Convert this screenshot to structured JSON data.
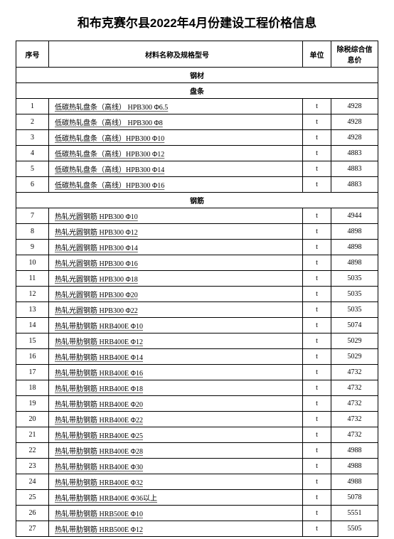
{
  "title": "和布克赛尔县2022年4月份建设工程价格信息",
  "columns": {
    "seq": "序号",
    "name": "材料名称及规格型号",
    "unit": "单位",
    "price": "除税综合信息价"
  },
  "sections": [
    {
      "header": "钢材"
    },
    {
      "header": "盘条",
      "rows": [
        {
          "seq": "1",
          "name": "低碳热轧盘条（高线） HPB300 Φ6.5",
          "unit": "t",
          "price": "4928"
        },
        {
          "seq": "2",
          "name": "低碳热轧盘条（高线） HPB300 Φ8",
          "unit": "t",
          "price": "4928"
        },
        {
          "seq": "3",
          "name": "低碳热轧盘条（高线）HPB300 Φ10",
          "unit": "t",
          "price": "4928"
        },
        {
          "seq": "4",
          "name": "低碳热轧盘条（高线）HPB300 Φ12",
          "unit": "t",
          "price": "4883"
        },
        {
          "seq": "5",
          "name": "低碳热轧盘条（高线）HPB300 Φ14",
          "unit": "t",
          "price": "4883"
        },
        {
          "seq": "6",
          "name": "低碳热轧盘条（高线）HPB300 Φ16",
          "unit": "t",
          "price": "4883"
        }
      ]
    },
    {
      "header": "钢筋",
      "rows": [
        {
          "seq": "7",
          "name": "热轧光圆钢筋 HPB300 Φ10",
          "unit": "t",
          "price": "4944"
        },
        {
          "seq": "8",
          "name": "热轧光圆钢筋 HPB300 Φ12",
          "unit": "t",
          "price": "4898"
        },
        {
          "seq": "9",
          "name": "热轧光圆钢筋 HPB300 Φ14",
          "unit": "t",
          "price": "4898"
        },
        {
          "seq": "10",
          "name": "热轧光圆钢筋 HPB300 Φ16",
          "unit": "t",
          "price": "4898"
        },
        {
          "seq": "11",
          "name": "热轧光圆钢筋 HPB300 Φ18",
          "unit": "t",
          "price": "5035"
        },
        {
          "seq": "12",
          "name": "热轧光圆钢筋 HPB300 Φ20",
          "unit": "t",
          "price": "5035"
        },
        {
          "seq": "13",
          "name": "热轧光圆钢筋 HPB300 Φ22",
          "unit": "t",
          "price": "5035"
        },
        {
          "seq": "14",
          "name": "热轧带肋钢筋 HRB400E Φ10",
          "unit": "t",
          "price": "5074"
        },
        {
          "seq": "15",
          "name": "热轧带肋钢筋 HRB400E Φ12",
          "unit": "t",
          "price": "5029"
        },
        {
          "seq": "16",
          "name": "热轧带肋钢筋 HRB400E Φ14",
          "unit": "t",
          "price": "5029"
        },
        {
          "seq": "17",
          "name": "热轧带肋钢筋 HRB400E Φ16",
          "unit": "t",
          "price": "4732"
        },
        {
          "seq": "18",
          "name": "热轧带肋钢筋 HRB400E Φ18",
          "unit": "t",
          "price": "4732"
        },
        {
          "seq": "19",
          "name": "热轧带肋钢筋 HRB400E Φ20",
          "unit": "t",
          "price": "4732"
        },
        {
          "seq": "20",
          "name": "热轧带肋钢筋 HRB400E Φ22",
          "unit": "t",
          "price": "4732"
        },
        {
          "seq": "21",
          "name": "热轧带肋钢筋 HRB400E Φ25",
          "unit": "t",
          "price": "4732"
        },
        {
          "seq": "22",
          "name": "热轧带肋钢筋 HRB400E Φ28",
          "unit": "t",
          "price": "4988"
        },
        {
          "seq": "23",
          "name": "热轧带肋钢筋 HRB400E Φ30",
          "unit": "t",
          "price": "4988"
        },
        {
          "seq": "24",
          "name": "热轧带肋钢筋 HRB400E Φ32",
          "unit": "t",
          "price": "4988"
        },
        {
          "seq": "25",
          "name": "热轧带肋钢筋 HRB400E Φ36以上",
          "unit": "t",
          "price": "5078"
        },
        {
          "seq": "26",
          "name": "热轧带肋钢筋 HRB500E Φ10",
          "unit": "t",
          "price": "5551"
        },
        {
          "seq": "27",
          "name": "热轧带肋钢筋 HRB500E Φ12",
          "unit": "t",
          "price": "5505"
        }
      ]
    }
  ]
}
